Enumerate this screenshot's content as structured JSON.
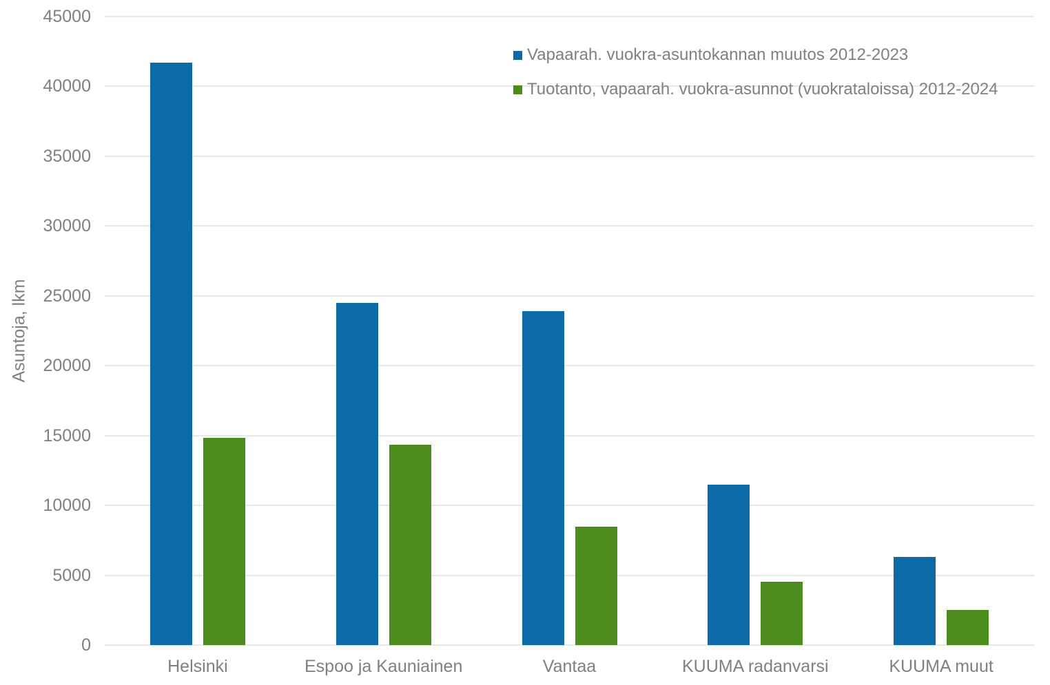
{
  "chart_data": {
    "type": "bar",
    "title": "",
    "xlabel": "",
    "ylabel": "Asuntoja, lkm",
    "ylim": [
      0,
      45000
    ],
    "ytick_step": 5000,
    "grid": true,
    "legend_position": "top-right",
    "categories": [
      "Helsinki",
      "Espoo ja Kauniainen",
      "Vantaa",
      "KUUMA radanvarsi",
      "KUUMA muut"
    ],
    "series": [
      {
        "name": "Vapaarah. vuokra-asuntokannan muutos 2012-2023",
        "color": "#0d6aa8",
        "values": [
          41700,
          24500,
          23900,
          11500,
          6300
        ]
      },
      {
        "name": "Tuotanto, vapaarah. vuokra-asunnot (vuokrataloissa) 2012-2024",
        "color": "#4c8c1e",
        "values": [
          14850,
          14350,
          8500,
          4550,
          2500
        ]
      }
    ]
  },
  "colors": {
    "grid": "#e8e8e8",
    "axis_text": "#808080",
    "background": "#ffffff"
  }
}
